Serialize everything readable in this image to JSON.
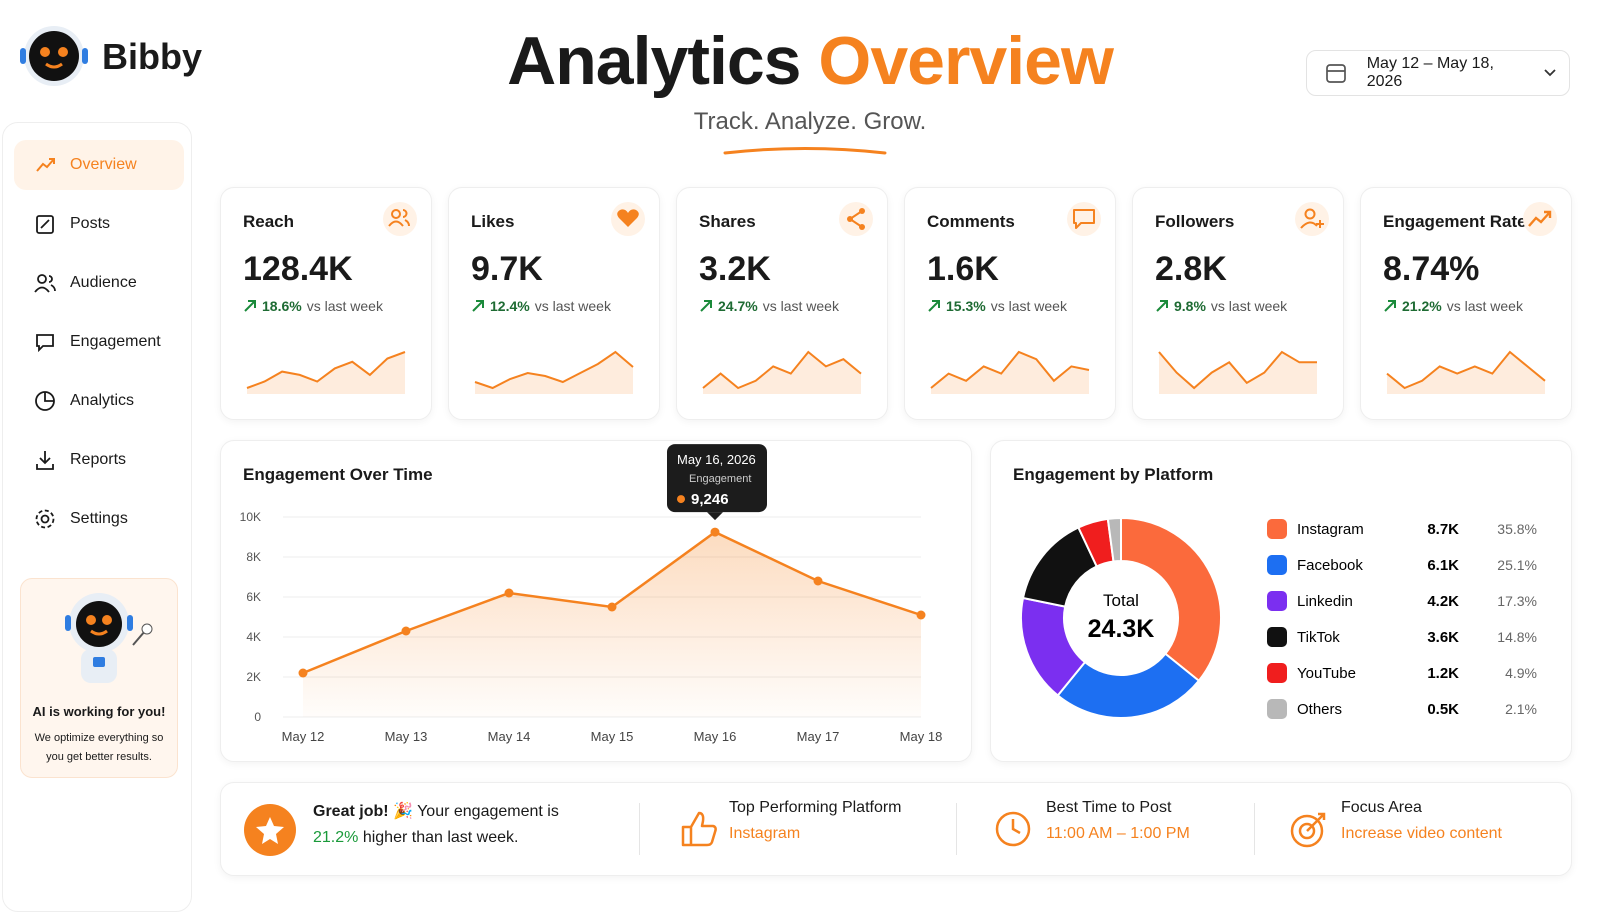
{
  "brand": "Bibby",
  "header": {
    "title": "Analytics",
    "title_accent": "Overview",
    "subtitle": "Track. Analyze. Grow.",
    "date_range": "May 12 – May 18, 2026"
  },
  "nav": {
    "items": [
      "Overview",
      "Posts",
      "Audience",
      "Engagement",
      "Analytics",
      "Reports",
      "Settings"
    ],
    "active": "Overview"
  },
  "promo": {
    "title": "AI is working for you!",
    "text": "We optimize everything so you get better results."
  },
  "kpis": {
    "note": "vs last week",
    "cards": [
      {
        "label": "Reach",
        "value": "128.4K",
        "change": "18.6%",
        "trend": [
          2,
          3,
          4.5,
          4,
          3,
          5,
          6,
          4,
          6.5,
          7.5
        ]
      },
      {
        "label": "Likes",
        "value": "9.7K",
        "change": "12.4%",
        "trend": [
          3,
          2,
          3.5,
          4.5,
          4,
          3,
          4.5,
          6,
          8,
          5.5
        ]
      },
      {
        "label": "Shares",
        "value": "3.2K",
        "change": "24.7%",
        "trend": [
          2,
          4,
          2,
          3,
          5,
          4,
          7,
          5,
          6,
          4
        ]
      },
      {
        "label": "Comments",
        "value": "1.6K",
        "change": "15.3%",
        "trend": [
          2,
          4,
          3,
          5,
          4,
          7,
          6,
          3,
          5,
          4.5
        ]
      },
      {
        "label": "Followers",
        "value": "2.8K",
        "change": "9.8%",
        "trend": [
          6,
          4,
          2.5,
          4,
          5,
          3,
          4,
          6,
          5,
          5
        ]
      },
      {
        "label": "Engagement Rate",
        "value": "8.74%",
        "change": "21.2%",
        "trend": [
          4,
          2,
          3,
          5,
          4,
          5,
          4,
          7,
          5,
          3
        ]
      }
    ]
  },
  "engagement_chart": {
    "type": "line",
    "title": "Engagement Over Time",
    "categories": [
      "May 12",
      "May 13",
      "May 14",
      "May 15",
      "May 16",
      "May 17",
      "May 18"
    ],
    "series": [
      {
        "name": "Engagement",
        "color": "#f5821f",
        "values": [
          2200,
          4300,
          6200,
          5500,
          9246,
          6800,
          5100
        ],
        "value_labels": [
          null,
          null,
          null,
          null,
          "9,246",
          null,
          null
        ]
      }
    ],
    "tooltip_title": "May 16, 2026",
    "ylim": [
      0,
      10000
    ],
    "yticks": [
      0,
      {
        "value": 2000,
        "label": "2K"
      },
      {
        "value": 4000,
        "label": "4K"
      },
      {
        "value": 6000,
        "label": "6K"
      },
      {
        "value": 8000,
        "label": "8K"
      },
      {
        "value": 10000,
        "label": "10K"
      }
    ],
    "grid": true
  },
  "platform_chart": {
    "type": "pie",
    "title": "Engagement by Platform",
    "center_label": "Total",
    "center_value": "24.3K",
    "categories": [
      "Instagram",
      "Facebook",
      "Linkedin",
      "TikTok",
      "YouTube",
      "Others"
    ],
    "counts": [
      "8.7K",
      "6.1K",
      "4.2K",
      "3.6K",
      "1.2K",
      "0.5K"
    ],
    "values": [
      35.8,
      25.1,
      17.3,
      14.8,
      4.9,
      2.1
    ],
    "value_labels": [
      "35.8%",
      "25.1%",
      "17.3%",
      "14.8%",
      "4.9%",
      "2.1%"
    ],
    "colors": [
      "#fb6a3c",
      "#1d6ff2",
      "#7b2ff0",
      "#111111",
      "#f01e1e",
      "#b8b8b8"
    ],
    "inner_ratio": 0.57
  },
  "insights": {
    "praise": {
      "title": "Great job! 🎉",
      "text": "Your engagement is",
      "highlight": "21.2%",
      "text_end": "higher than last week."
    },
    "items": [
      {
        "title": "Top Performing Platform",
        "value": "Instagram"
      },
      {
        "title": "Best Time to Post",
        "value": "11:00 AM – 1:00 PM"
      },
      {
        "title": "Focus Area",
        "value": "Increase video content"
      }
    ]
  }
}
